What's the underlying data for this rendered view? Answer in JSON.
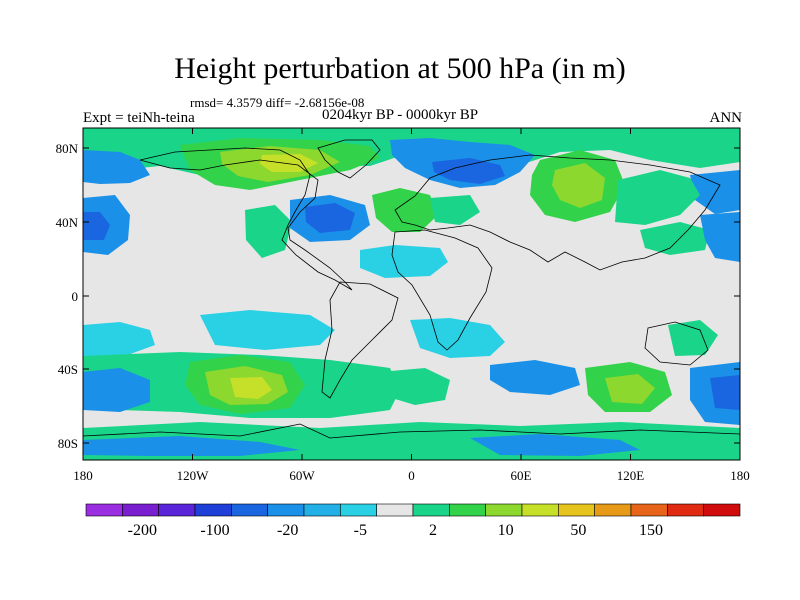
{
  "title": "Height perturbation at 500 hPa (in m)",
  "stats_line": "rmsd= 4.3579 diff= -2.68156e-08",
  "period": "0204kyr BP - 0000kyr BP",
  "experiment": "Expt = teiNh-teina",
  "season": "ANN",
  "lat_ticks": [
    "80N",
    "40N",
    "0",
    "40S",
    "80S"
  ],
  "lon_ticks": [
    "180",
    "120W",
    "60W",
    "0",
    "60E",
    "120E",
    "180"
  ],
  "colorbar": {
    "colors": [
      "#9a2ee0",
      "#7a1fd0",
      "#5a25d8",
      "#1e3fd8",
      "#1a66e0",
      "#1a90e8",
      "#22b0e6",
      "#2ad0e4",
      "#e6e6e6",
      "#1ad48a",
      "#32d24a",
      "#8cd82e",
      "#c6e02a",
      "#e6c41e",
      "#e69a18",
      "#e8641a",
      "#e02a12",
      "#d00c0c"
    ],
    "labels": [
      "-200",
      "-100",
      "-20",
      "-5",
      "2",
      "10",
      "50",
      "150"
    ]
  },
  "field_colors": {
    "neutral": "#e6e6e6",
    "lightblue": "#2ad0e4",
    "blue": "#1a90e8",
    "darkblue": "#1a66e0",
    "teal": "#1ad48a",
    "green": "#32d24a",
    "yellowgreen": "#8cd82e",
    "yellow": "#c6e02a"
  }
}
